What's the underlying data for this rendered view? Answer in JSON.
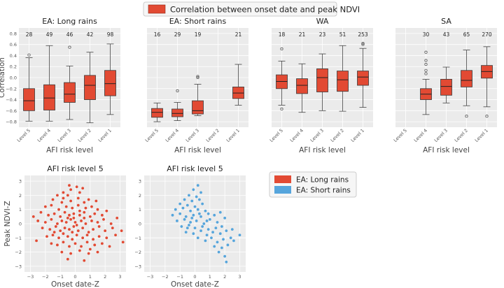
{
  "legend_top": {
    "label": "Correlation between onset date and peak NDVI",
    "color": "#e24a33"
  },
  "legend_scatter": {
    "items": [
      {
        "label": "EA: Long rains",
        "color": "#e24a33"
      },
      {
        "label": "EA: Short rains",
        "color": "#56a5dc"
      }
    ]
  },
  "colors": {
    "box": "#e24a33",
    "scatter_long": "#e24a33",
    "scatter_short": "#56a5dc",
    "panel_bg": "#ebebeb",
    "grid": "#ffffff"
  },
  "chart_data": [
    {
      "type": "box",
      "title": "EA: Long rains",
      "xlabel": "AFI risk level",
      "ylabel": "Correlation",
      "ylim": [
        -0.9,
        0.9
      ],
      "yticks": [
        -0.8,
        -0.6,
        -0.4,
        -0.2,
        0.0,
        0.2,
        0.4,
        0.6,
        0.8
      ],
      "categories": [
        "Level 5",
        "Level 4",
        "Level 3",
        "Level 2",
        "Level 1"
      ],
      "counts": [
        "28",
        "49",
        "46",
        "42",
        "98"
      ],
      "boxes": [
        {
          "whislo": -0.79,
          "q1": -0.6,
          "med": -0.42,
          "q3": -0.2,
          "whishi": 0.36,
          "fliers": [
            0.41
          ]
        },
        {
          "whislo": -0.79,
          "q1": -0.59,
          "med": -0.37,
          "q3": -0.13,
          "whishi": 0.58,
          "fliers": []
        },
        {
          "whislo": -0.76,
          "q1": -0.45,
          "med": -0.3,
          "q3": -0.09,
          "whishi": 0.21,
          "fliers": [
            0.55
          ]
        },
        {
          "whislo": -0.82,
          "q1": -0.4,
          "med": -0.14,
          "q3": 0.04,
          "whishi": 0.46,
          "fliers": []
        },
        {
          "whislo": -0.67,
          "q1": -0.33,
          "med": -0.11,
          "q3": 0.13,
          "whishi": 0.61,
          "fliers": []
        }
      ]
    },
    {
      "type": "box",
      "title": "EA: Short rains",
      "xlabel": "AFI risk level",
      "ylabel": "",
      "ylim": [
        -0.9,
        0.9
      ],
      "categories": [
        "Level 5",
        "Level 4",
        "Level 3",
        "Level 2",
        "Level 1"
      ],
      "counts": [
        "16",
        "29",
        "19",
        "",
        "21"
      ],
      "boxes": [
        {
          "whislo": -0.8,
          "q1": -0.72,
          "med": -0.63,
          "q3": -0.56,
          "whishi": -0.46,
          "fliers": []
        },
        {
          "whislo": -0.78,
          "q1": -0.71,
          "med": -0.65,
          "q3": -0.57,
          "whishi": -0.45,
          "fliers": [
            -0.24
          ]
        },
        {
          "whislo": -0.69,
          "q1": -0.66,
          "med": -0.6,
          "q3": -0.42,
          "whishi": -0.12,
          "fliers": [
            0.0,
            0.02
          ]
        },
        null,
        {
          "whislo": -0.5,
          "q1": -0.38,
          "med": -0.28,
          "q3": -0.17,
          "whishi": 0.24,
          "fliers": []
        }
      ]
    },
    {
      "type": "box",
      "title": "WA",
      "xlabel": "AFI risk level",
      "ylabel": "",
      "ylim": [
        -0.9,
        0.9
      ],
      "categories": [
        "Level 5",
        "Level 4",
        "Level 3",
        "Level 2",
        "Level 1"
      ],
      "counts": [
        "18",
        "21",
        "23",
        "51",
        "253"
      ],
      "boxes": [
        {
          "whislo": -0.5,
          "q1": -0.2,
          "med": -0.07,
          "q3": 0.05,
          "whishi": 0.3,
          "fliers": [
            0.52,
            -0.57
          ]
        },
        {
          "whislo": -0.63,
          "q1": -0.29,
          "med": -0.14,
          "q3": -0.02,
          "whishi": 0.25,
          "fliers": []
        },
        {
          "whislo": -0.6,
          "q1": -0.26,
          "med": 0.0,
          "q3": 0.16,
          "whishi": 0.43,
          "fliers": []
        },
        {
          "whislo": -0.61,
          "q1": -0.25,
          "med": -0.04,
          "q3": 0.12,
          "whishi": 0.58,
          "fliers": []
        },
        {
          "whislo": -0.54,
          "q1": -0.14,
          "med": 0.01,
          "q3": 0.12,
          "whishi": 0.53,
          "fliers": [
            0.6,
            0.62
          ]
        }
      ]
    },
    {
      "type": "box",
      "title": "SA",
      "xlabel": "AFI risk level",
      "ylabel": "",
      "ylim": [
        -0.9,
        0.9
      ],
      "categories": [
        "Level 5",
        "Level 4",
        "Level 3",
        "Level 2",
        "Level 1"
      ],
      "counts": [
        "",
        "30",
        "43",
        "65",
        "270"
      ],
      "boxes": [
        null,
        {
          "whislo": -0.67,
          "q1": -0.4,
          "med": -0.3,
          "q3": -0.2,
          "whishi": -0.03,
          "fliers": [
            0.07,
            0.13,
            0.24,
            0.31,
            0.46
          ]
        },
        {
          "whislo": -0.46,
          "q1": -0.32,
          "med": -0.16,
          "q3": -0.03,
          "whishi": 0.19,
          "fliers": []
        },
        {
          "whislo": -0.51,
          "q1": -0.17,
          "med": -0.05,
          "q3": 0.13,
          "whishi": 0.5,
          "fliers": [
            -0.7
          ]
        },
        {
          "whislo": -0.53,
          "q1": -0.01,
          "med": 0.11,
          "q3": 0.22,
          "whishi": 0.56,
          "fliers": [
            -0.7
          ]
        }
      ]
    },
    {
      "type": "scatter",
      "title": "AFI risk level 5",
      "xlabel": "Onset date-Z",
      "ylabel": "Peak NDVI-Z",
      "xlim": [
        -3.4,
        3.4
      ],
      "ylim": [
        -3.4,
        3.4
      ],
      "xticks": [
        -3,
        -2,
        -1,
        0,
        1,
        2,
        3
      ],
      "yticks": [
        -3,
        -2,
        -1,
        0,
        1,
        2,
        3
      ],
      "series_label": "EA: Long rains",
      "points": [
        [
          -0.4,
          2.7
        ],
        [
          -0.3,
          2.4
        ],
        [
          0.1,
          2.6
        ],
        [
          -0.8,
          2.2
        ],
        [
          -1.2,
          2.0
        ],
        [
          -0.5,
          2.0
        ],
        [
          0.3,
          2.2
        ],
        [
          0.5,
          2.5
        ],
        [
          -1.5,
          1.7
        ],
        [
          -0.9,
          1.5
        ],
        [
          -0.3,
          1.6
        ],
        [
          0.2,
          1.8
        ],
        [
          0.6,
          1.5
        ],
        [
          0.9,
          1.7
        ],
        [
          -2.0,
          1.2
        ],
        [
          -1.6,
          1.3
        ],
        [
          -1.1,
          1.0
        ],
        [
          -0.6,
          1.2
        ],
        [
          -0.2,
          1.1
        ],
        [
          0.2,
          1.3
        ],
        [
          0.7,
          1.1
        ],
        [
          1.1,
          1.2
        ],
        [
          1.5,
          1.0
        ],
        [
          -2.3,
          0.8
        ],
        [
          -1.8,
          0.6
        ],
        [
          -1.4,
          0.7
        ],
        [
          -1.0,
          0.5
        ],
        [
          -0.7,
          0.8
        ],
        [
          -0.4,
          0.6
        ],
        [
          -0.1,
          0.7
        ],
        [
          0.3,
          0.6
        ],
        [
          0.6,
          0.8
        ],
        [
          1.0,
          0.5
        ],
        [
          1.3,
          0.7
        ],
        [
          1.8,
          0.6
        ],
        [
          2.1,
          0.9
        ],
        [
          -2.5,
          0.2
        ],
        [
          -2.0,
          0.1
        ],
        [
          -1.6,
          0.3
        ],
        [
          -1.2,
          0.0
        ],
        [
          -0.9,
          0.2
        ],
        [
          -0.6,
          0.1
        ],
        [
          -0.3,
          0.3
        ],
        [
          0.0,
          0.1
        ],
        [
          0.4,
          0.2
        ],
        [
          0.7,
          0.0
        ],
        [
          1.1,
          0.2
        ],
        [
          1.5,
          0.1
        ],
        [
          1.9,
          0.3
        ],
        [
          2.4,
          0.0
        ],
        [
          -2.2,
          -0.3
        ],
        [
          -1.7,
          -0.4
        ],
        [
          -1.3,
          -0.2
        ],
        [
          -1.0,
          -0.5
        ],
        [
          -0.7,
          -0.3
        ],
        [
          -0.4,
          -0.4
        ],
        [
          -0.1,
          -0.2
        ],
        [
          0.2,
          -0.5
        ],
        [
          0.5,
          -0.3
        ],
        [
          0.9,
          -0.6
        ],
        [
          1.2,
          -0.4
        ],
        [
          1.6,
          -0.2
        ],
        [
          2.0,
          -0.5
        ],
        [
          2.5,
          -0.3
        ],
        [
          -1.9,
          -0.9
        ],
        [
          -1.5,
          -0.8
        ],
        [
          -1.1,
          -1.0
        ],
        [
          -0.8,
          -0.7
        ],
        [
          -0.5,
          -0.9
        ],
        [
          -0.2,
          -1.1
        ],
        [
          0.1,
          -0.8
        ],
        [
          0.5,
          -1.0
        ],
        [
          0.8,
          -0.8
        ],
        [
          1.2,
          -1.1
        ],
        [
          1.6,
          -0.9
        ],
        [
          2.1,
          -1.0
        ],
        [
          2.7,
          -0.8
        ],
        [
          -1.6,
          -1.4
        ],
        [
          -1.2,
          -1.5
        ],
        [
          -0.8,
          -1.3
        ],
        [
          -0.4,
          -1.6
        ],
        [
          0.0,
          -1.4
        ],
        [
          0.4,
          -1.6
        ],
        [
          0.8,
          -1.3
        ],
        [
          1.3,
          -1.5
        ],
        [
          1.8,
          -1.4
        ],
        [
          2.3,
          -1.6
        ],
        [
          -0.9,
          -2.0
        ],
        [
          -0.3,
          -2.1
        ],
        [
          0.3,
          -1.9
        ],
        [
          0.9,
          -2.1
        ],
        [
          1.5,
          -2.0
        ],
        [
          -0.5,
          -2.5
        ],
        [
          0.6,
          -2.6
        ],
        [
          -2.8,
          0.5
        ],
        [
          3.1,
          -0.5
        ],
        [
          3.2,
          -1.3
        ],
        [
          -0.1,
          0.4
        ],
        [
          0.1,
          -0.1
        ],
        [
          -0.5,
          0.4
        ],
        [
          0.3,
          0.9
        ],
        [
          -0.2,
          -0.6
        ],
        [
          0.6,
          0.4
        ],
        [
          -0.8,
          1.8
        ],
        [
          1.4,
          1.6
        ],
        [
          -1.4,
          -0.6
        ],
        [
          1.0,
          -1.8
        ],
        [
          -2.6,
          -1.2
        ],
        [
          2.8,
          0.4
        ]
      ]
    },
    {
      "type": "scatter",
      "title": "AFI risk level 5",
      "xlabel": "Onset date-Z",
      "ylabel": "",
      "xlim": [
        -3.4,
        3.4
      ],
      "ylim": [
        -3.4,
        3.4
      ],
      "xticks": [
        -3,
        -2,
        -1,
        0,
        1,
        2,
        3
      ],
      "yticks": [
        -3,
        -2,
        -1,
        0,
        1,
        2,
        3
      ],
      "series_label": "EA: Short rains",
      "points": [
        [
          0.2,
          2.7
        ],
        [
          -0.1,
          2.4
        ],
        [
          0.4,
          2.2
        ],
        [
          -0.4,
          2.0
        ],
        [
          0.1,
          1.9
        ],
        [
          -0.7,
          1.7
        ],
        [
          -0.2,
          1.6
        ],
        [
          0.3,
          1.7
        ],
        [
          -1.0,
          1.4
        ],
        [
          -0.5,
          1.3
        ],
        [
          0.0,
          1.2
        ],
        [
          0.5,
          1.4
        ],
        [
          -1.3,
          1.0
        ],
        [
          -0.8,
          1.1
        ],
        [
          -0.3,
          0.9
        ],
        [
          0.2,
          1.0
        ],
        [
          0.7,
          0.9
        ],
        [
          -1.5,
          0.6
        ],
        [
          -1.0,
          0.7
        ],
        [
          -0.6,
          0.5
        ],
        [
          -0.1,
          0.6
        ],
        [
          0.4,
          0.5
        ],
        [
          0.9,
          0.7
        ],
        [
          1.3,
          0.6
        ],
        [
          -1.2,
          0.2
        ],
        [
          -0.7,
          0.3
        ],
        [
          -0.3,
          0.1
        ],
        [
          0.1,
          0.2
        ],
        [
          0.6,
          0.0
        ],
        [
          1.0,
          0.3
        ],
        [
          1.5,
          0.1
        ],
        [
          -0.9,
          -0.2
        ],
        [
          -0.4,
          -0.1
        ],
        [
          0.0,
          -0.3
        ],
        [
          0.5,
          -0.2
        ],
        [
          0.9,
          -0.4
        ],
        [
          1.4,
          -0.3
        ],
        [
          1.8,
          -0.2
        ],
        [
          -0.6,
          -0.6
        ],
        [
          -0.1,
          -0.7
        ],
        [
          0.4,
          -0.5
        ],
        [
          0.8,
          -0.8
        ],
        [
          1.2,
          -0.6
        ],
        [
          1.7,
          -0.7
        ],
        [
          2.1,
          -0.5
        ],
        [
          0.2,
          -1.0
        ],
        [
          0.7,
          -1.2
        ],
        [
          1.1,
          -1.0
        ],
        [
          1.5,
          -1.3
        ],
        [
          1.9,
          -1.1
        ],
        [
          2.4,
          -1.0
        ],
        [
          1.3,
          -1.6
        ],
        [
          1.8,
          -1.7
        ],
        [
          2.2,
          -1.5
        ],
        [
          2.6,
          -1.2
        ],
        [
          1.6,
          -2.0
        ],
        [
          2.0,
          -2.3
        ],
        [
          2.1,
          -2.7
        ],
        [
          1.7,
          0.8
        ],
        [
          2.0,
          0.4
        ],
        [
          2.5,
          -0.4
        ],
        [
          3.0,
          -0.8
        ],
        [
          -0.2,
          0.4
        ],
        [
          0.3,
          0.7
        ],
        [
          -0.5,
          -0.3
        ],
        [
          0.8,
          0.2
        ]
      ]
    }
  ]
}
